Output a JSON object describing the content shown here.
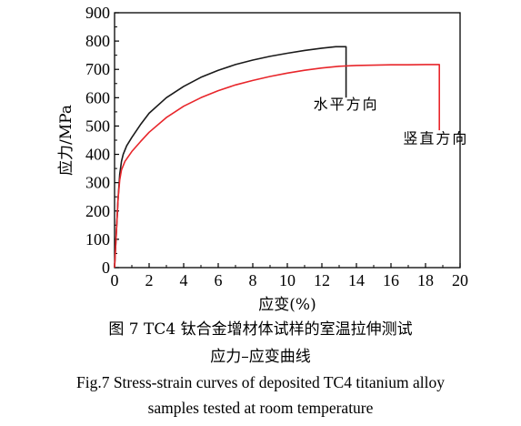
{
  "chart_data": {
    "type": "line",
    "xlabel": "应变(%)",
    "ylabel": "应力/MPa",
    "xlim": [
      0,
      20
    ],
    "ylim": [
      0,
      900
    ],
    "x_ticks": [
      "0",
      "2",
      "4",
      "6",
      "8",
      "10",
      "12",
      "14",
      "16",
      "18",
      "20"
    ],
    "y_ticks": [
      "0",
      "100",
      "200",
      "300",
      "400",
      "500",
      "600",
      "700",
      "800",
      "900"
    ],
    "grid": false,
    "legend": "none",
    "series": [
      {
        "name": "水平方向",
        "color": "#1a1a1a",
        "x": [
          0,
          0.1,
          0.2,
          0.3,
          0.4,
          0.5,
          0.7,
          1.0,
          1.5,
          2.0,
          3.0,
          4.0,
          5.0,
          6.0,
          7.0,
          8.0,
          9.0,
          10.0,
          11.0,
          12.0,
          12.8,
          13.4,
          13.4
        ],
        "y": [
          0,
          120,
          240,
          330,
          375,
          400,
          430,
          460,
          505,
          545,
          600,
          640,
          672,
          697,
          717,
          733,
          746,
          757,
          767,
          775,
          780,
          780,
          600
        ]
      },
      {
        "name": "竖直方向",
        "color": "#e8262b",
        "x": [
          0,
          0.1,
          0.2,
          0.3,
          0.4,
          0.6,
          1.0,
          1.5,
          2.0,
          3.0,
          4.0,
          5.0,
          6.0,
          7.0,
          8.0,
          9.0,
          10.0,
          11.0,
          12.0,
          13.0,
          14.0,
          15.0,
          16.0,
          17.0,
          18.0,
          18.8,
          18.8
        ],
        "y": [
          0,
          120,
          240,
          310,
          345,
          375,
          410,
          445,
          478,
          530,
          570,
          600,
          625,
          645,
          661,
          675,
          687,
          697,
          705,
          711,
          714,
          715,
          716,
          716,
          717,
          717,
          485
        ]
      }
    ],
    "annotations": [
      {
        "text": "水平方向",
        "x": 13.4,
        "y": 560
      },
      {
        "text": "竖直方向",
        "x": 18.6,
        "y": 438
      }
    ]
  },
  "caption": {
    "cn_line1": "图 7  TC4 钛合金增材体试样的室温拉伸测试",
    "cn_line2": "应力–应变曲线",
    "en_line1": "Fig.7  Stress-strain curves of deposited TC4 titanium alloy",
    "en_line2": "samples tested at room temperature"
  }
}
